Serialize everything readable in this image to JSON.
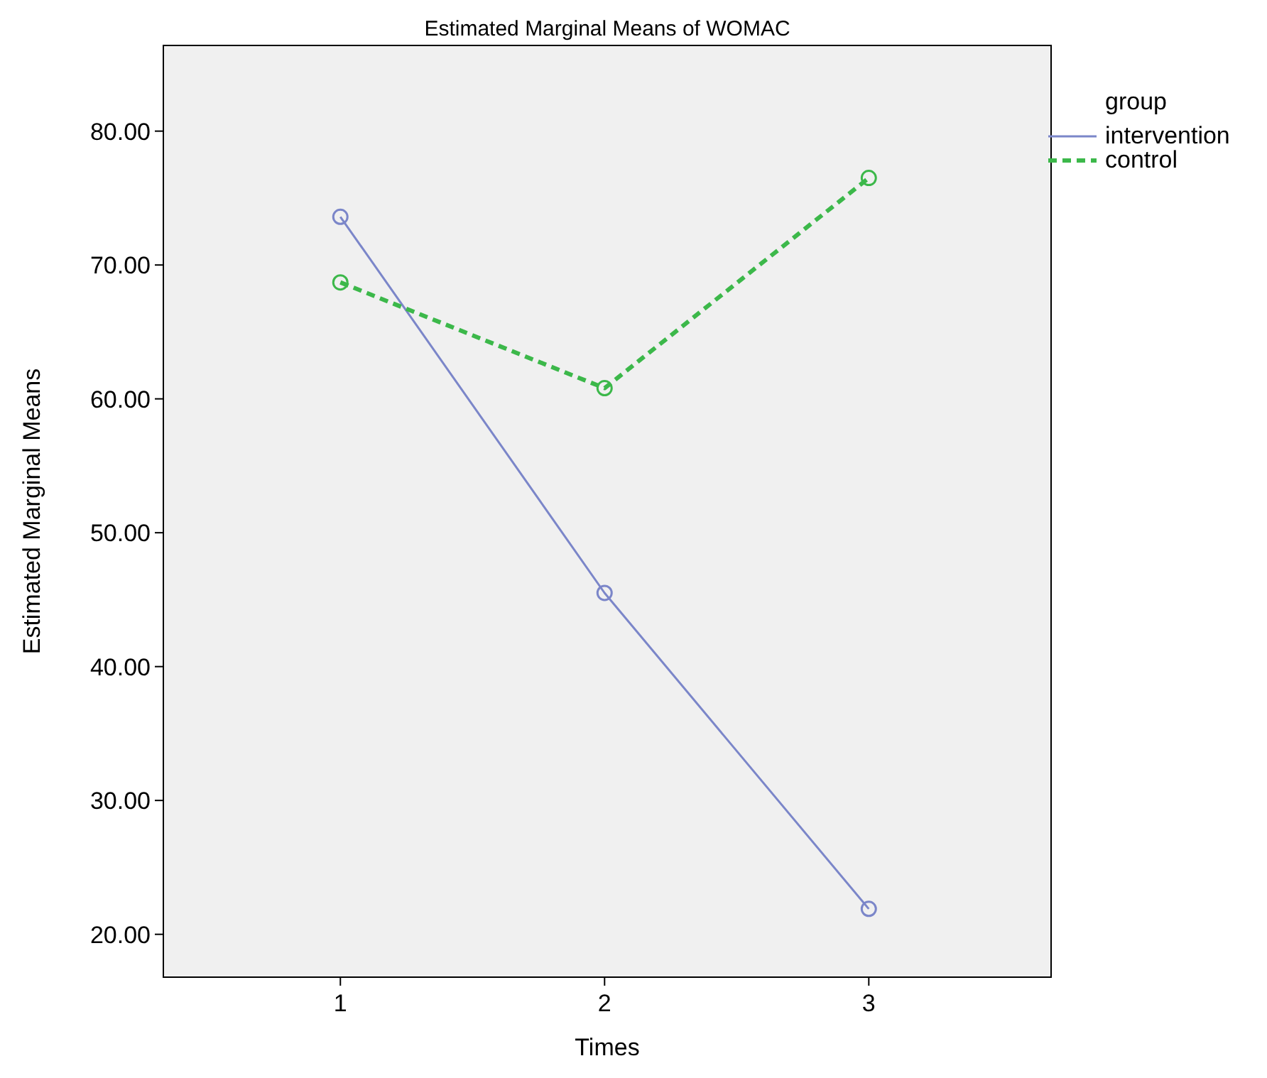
{
  "chart_data": {
    "type": "line",
    "title": "Estimated Marginal Means of WOMAC",
    "xlabel": "Times",
    "ylabel": "Estimated Marginal Means",
    "legend_title": "group",
    "x": [
      1,
      2,
      3
    ],
    "xlim": [
      0.33,
      3.69
    ],
    "xticks": [
      1,
      2,
      3
    ],
    "ylim": [
      16.8,
      86.4
    ],
    "yticks": [
      {
        "value": 20,
        "label": "20.00"
      },
      {
        "value": 30,
        "label": "30.00"
      },
      {
        "value": 40,
        "label": "40.00"
      },
      {
        "value": 50,
        "label": "50.00"
      },
      {
        "value": 60,
        "label": "60.00"
      },
      {
        "value": 70,
        "label": "70.00"
      },
      {
        "value": 80,
        "label": "80.00"
      }
    ],
    "marker": "circle",
    "legend": "right",
    "grid": false,
    "series": [
      {
        "name": "intervention",
        "color": "#7b86c9",
        "values": [
          73.6,
          45.5,
          21.9
        ],
        "line_style": "solid"
      },
      {
        "name": "control",
        "color": "#3cb84a",
        "values": [
          68.7,
          60.8,
          76.5
        ],
        "line_style": "dashed"
      }
    ]
  }
}
